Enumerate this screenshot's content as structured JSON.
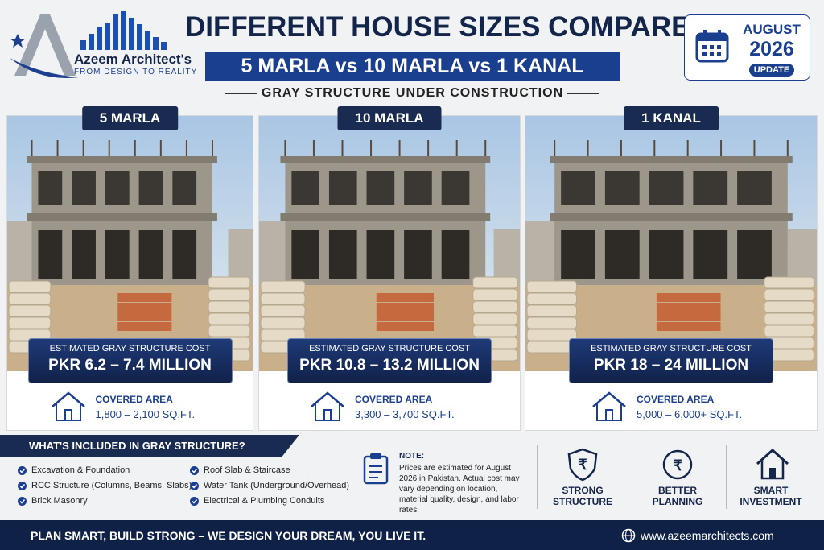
{
  "brand": {
    "name": "Azeem Architect's",
    "tagline": "FROM DESIGN TO REALITY"
  },
  "header": {
    "title": "DIFFERENT HOUSE SIZES COMPARED",
    "subtitle": "5 MARLA vs 10 MARLA vs 1 KANAL",
    "tagline": "GRAY STRUCTURE UNDER CONSTRUCTION"
  },
  "badge": {
    "month": "AUGUST",
    "year": "2026",
    "label": "UPDATE"
  },
  "cards": [
    {
      "title": "5 MARLA",
      "cost_label": "ESTIMATED GRAY STRUCTURE COST",
      "cost": "PKR 6.2 – 7.4 MILLION",
      "area_label": "COVERED AREA",
      "area": "1,800 – 2,100 SQ.FT."
    },
    {
      "title": "10 MARLA",
      "cost_label": "ESTIMATED GRAY STRUCTURE COST",
      "cost": "PKR 10.8 – 13.2 MILLION",
      "area_label": "COVERED AREA",
      "area": "3,300 – 3,700 SQ.FT."
    },
    {
      "title": "1 KANAL",
      "cost_label": "ESTIMATED GRAY STRUCTURE COST",
      "cost": "PKR 18 – 24 MILLION",
      "area_label": "COVERED AREA",
      "area": "5,000 – 6,000+ SQ.FT."
    }
  ],
  "included": {
    "title": "WHAT'S INCLUDED IN GRAY STRUCTURE?",
    "items": [
      "Excavation & Foundation",
      "RCC Structure (Columns, Beams, Slabs)",
      "Brick Masonry",
      "Roof Slab & Staircase",
      "Water Tank (Underground/Overhead)",
      "Electrical & Plumbing Conduits"
    ]
  },
  "note": {
    "title": "NOTE:",
    "text": "Prices are estimated for August 2026 in Pakistan. Actual cost may vary depending on location, material quality, design, and labor rates."
  },
  "benefits": [
    "STRONG STRUCTURE",
    "BETTER PLANNING",
    "SMART INVESTMENT"
  ],
  "footer": {
    "slogan": "PLAN SMART, BUILD STRONG – WE DESIGN YOUR DREAM, YOU LIVE IT.",
    "website": "www.azeemarchitects.com"
  }
}
